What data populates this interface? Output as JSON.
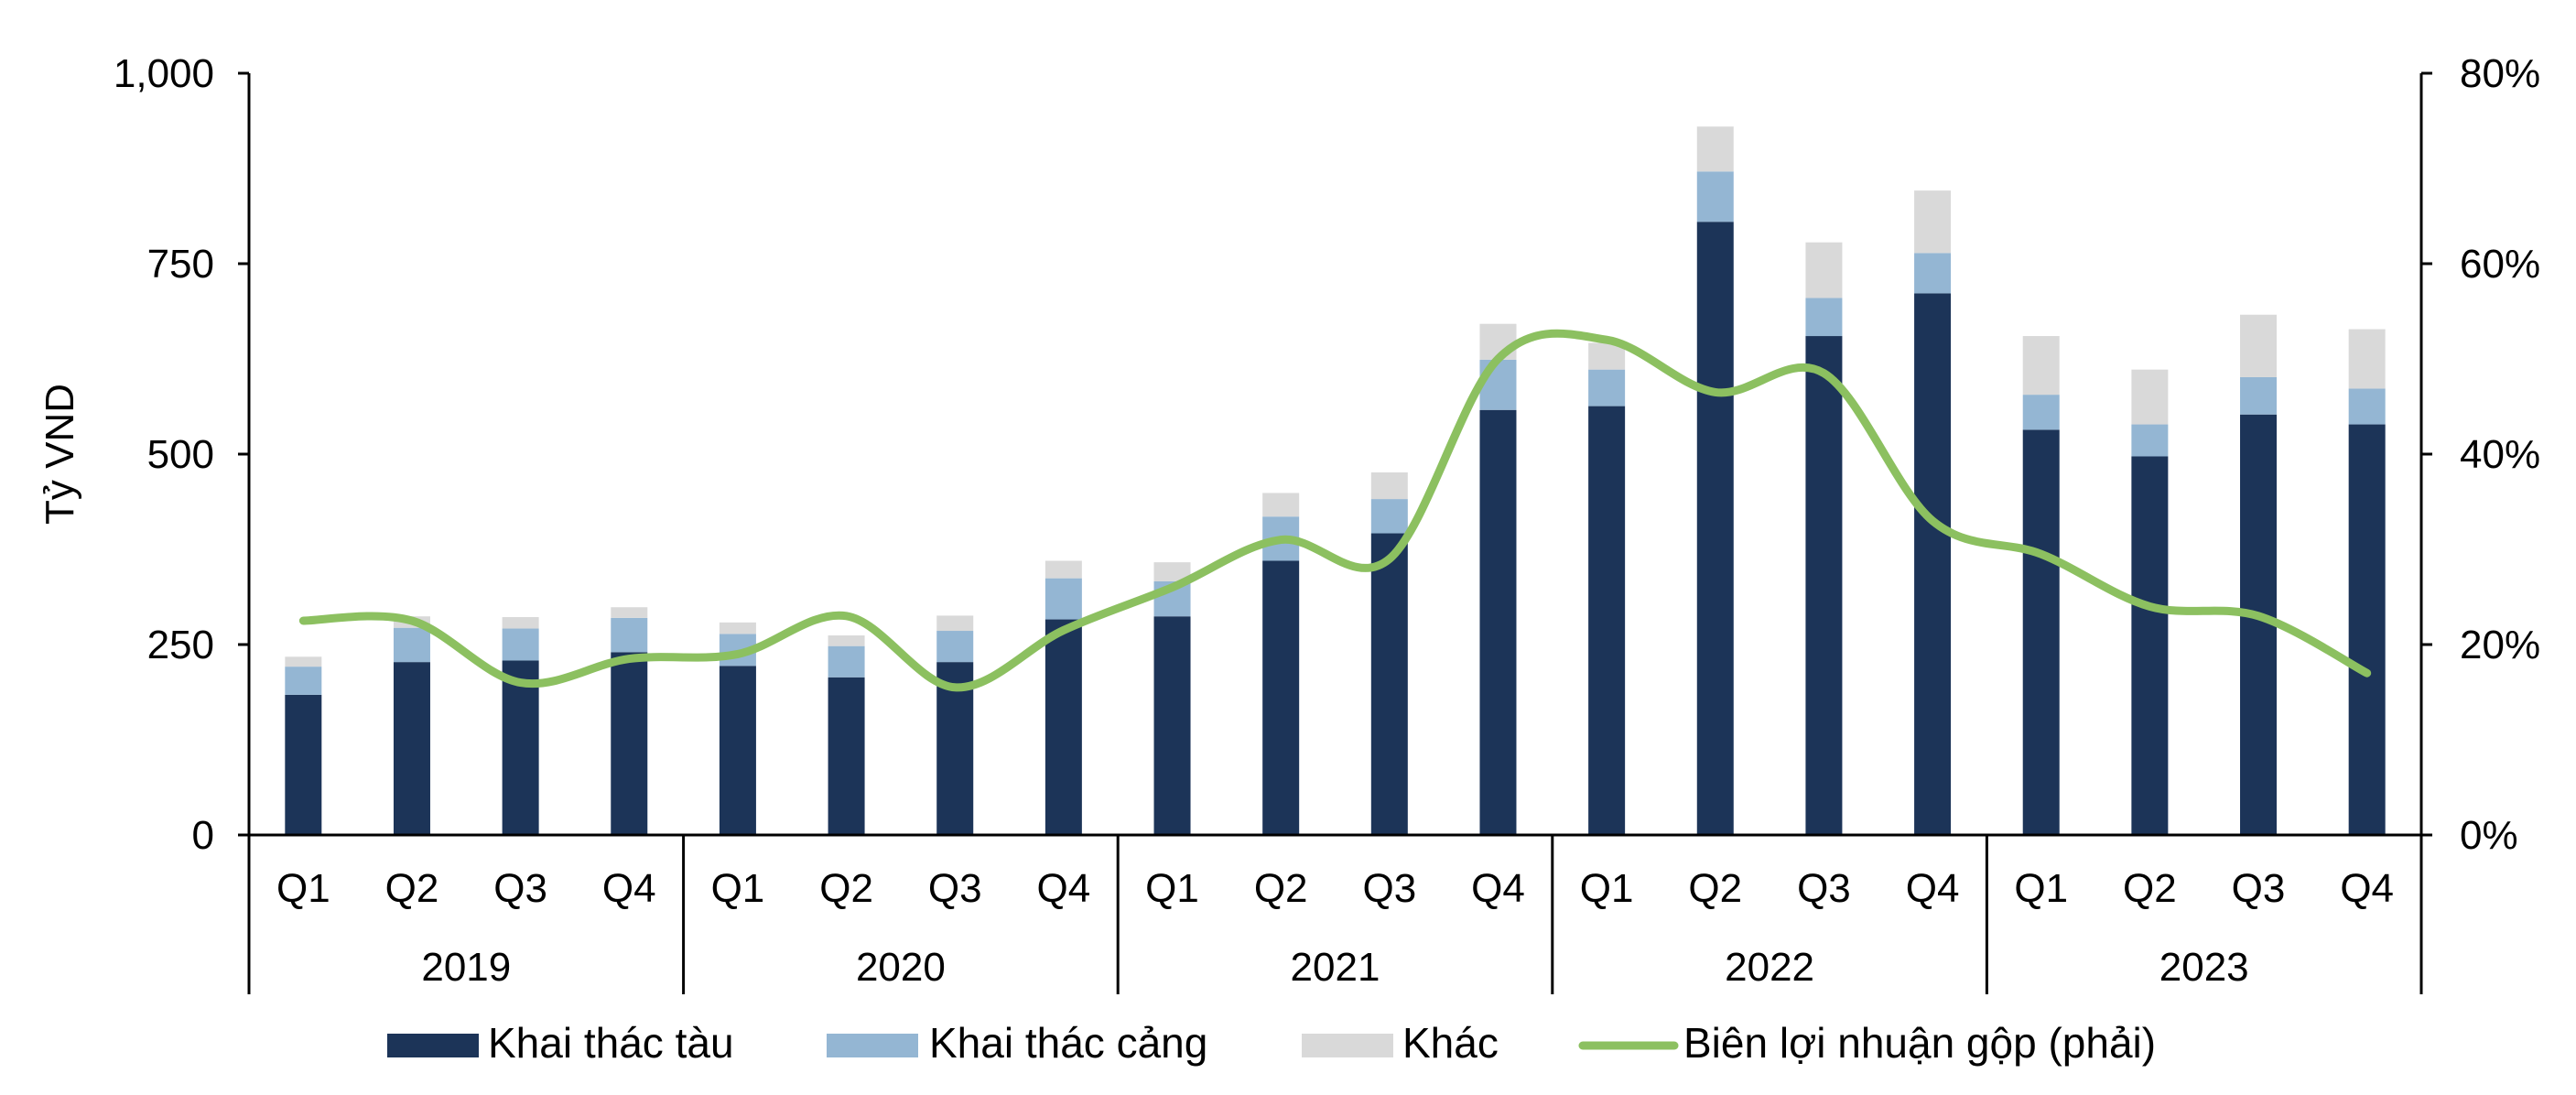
{
  "chart_data": {
    "type": "bar",
    "stacked": true,
    "title": "",
    "ylabel": "Tỷ VND",
    "y2label": "",
    "ylim": [
      0,
      1000
    ],
    "yticks": [
      "0",
      "250",
      "500",
      "750",
      "1,000"
    ],
    "y2lim": [
      0,
      0.8
    ],
    "y2ticks": [
      "0%",
      "20%",
      "40%",
      "60%",
      "80%"
    ],
    "categories": [
      "Q1",
      "Q2",
      "Q3",
      "Q4",
      "Q1",
      "Q2",
      "Q3",
      "Q4",
      "Q1",
      "Q2",
      "Q3",
      "Q4",
      "Q1",
      "Q2",
      "Q3",
      "Q4",
      "Q1",
      "Q2",
      "Q3",
      "Q4"
    ],
    "groups": [
      "2019",
      "2020",
      "2021",
      "2022",
      "2023"
    ],
    "series": [
      {
        "name": "Khai thác tàu",
        "color": "#1c3458",
        "values": [
          184,
          227,
          229,
          240,
          222,
          207,
          227,
          283,
          287,
          360,
          396,
          558,
          563,
          805,
          655,
          711,
          532,
          497,
          552,
          539
        ]
      },
      {
        "name": "Khai thác cảng",
        "color": "#94b6d3",
        "values": [
          37,
          45,
          42,
          45,
          42,
          41,
          41,
          54,
          46,
          58,
          45,
          66,
          48,
          66,
          50,
          53,
          46,
          42,
          49,
          47
        ]
      },
      {
        "name": "Khác",
        "color": "#d9d9d9",
        "values": [
          13,
          15,
          15,
          14,
          15,
          14,
          20,
          23,
          25,
          31,
          35,
          47,
          35,
          59,
          73,
          82,
          77,
          72,
          82,
          78
        ]
      }
    ],
    "line_series": {
      "name": "Biên lợi nhuận gộp (phải)",
      "axis": "right",
      "color": "#8cc060",
      "values": [
        0.225,
        0.225,
        0.16,
        0.185,
        0.19,
        0.23,
        0.155,
        0.215,
        0.26,
        0.31,
        0.29,
        0.5,
        0.52,
        0.465,
        0.485,
        0.33,
        0.295,
        0.24,
        0.23,
        0.17
      ]
    },
    "legend": {
      "position": "bottom"
    }
  }
}
